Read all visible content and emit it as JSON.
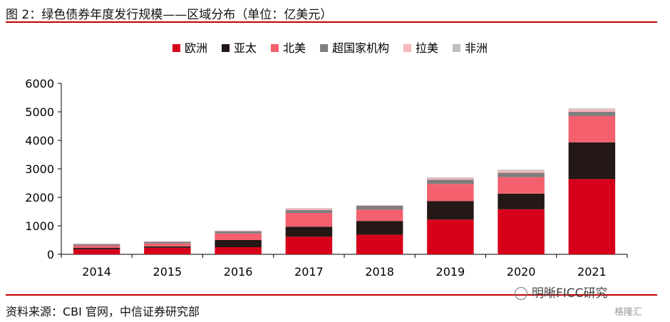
{
  "header": {
    "title": "图 2：绿色债券年度发行规模——区域分布（单位：亿美元）"
  },
  "footer": {
    "source": "资料来源：CBI 官网，中信证券研究部"
  },
  "watermarks": {
    "primary": "明晰FICC研究",
    "secondary": "格隆汇"
  },
  "chart_data": {
    "type": "bar",
    "stacked": true,
    "categories": [
      "2014",
      "2015",
      "2016",
      "2017",
      "2018",
      "2019",
      "2020",
      "2021"
    ],
    "ylim": [
      0,
      6000
    ],
    "yticks": [
      0,
      1000,
      2000,
      3000,
      4000,
      5000,
      6000
    ],
    "legend_position": "top",
    "grid": false,
    "series": [
      {
        "name": "欧洲",
        "color": "#d7001a",
        "values": [
          180,
          230,
          250,
          620,
          690,
          1220,
          1580,
          2640
        ]
      },
      {
        "name": "亚太",
        "color": "#231815",
        "values": [
          50,
          50,
          250,
          350,
          480,
          650,
          550,
          1290
        ]
      },
      {
        "name": "北美",
        "color": "#f4606e",
        "values": [
          80,
          100,
          230,
          480,
          400,
          600,
          580,
          920
        ]
      },
      {
        "name": "超国家机构",
        "color": "#7f7f7f",
        "values": [
          50,
          60,
          80,
          100,
          130,
          150,
          150,
          150
        ]
      },
      {
        "name": "拉美",
        "color": "#f7b5bd",
        "values": [
          10,
          10,
          20,
          50,
          20,
          50,
          70,
          90
        ]
      },
      {
        "name": "非洲",
        "color": "#bfbfbf",
        "values": [
          5,
          5,
          5,
          20,
          10,
          30,
          40,
          30
        ]
      }
    ]
  }
}
